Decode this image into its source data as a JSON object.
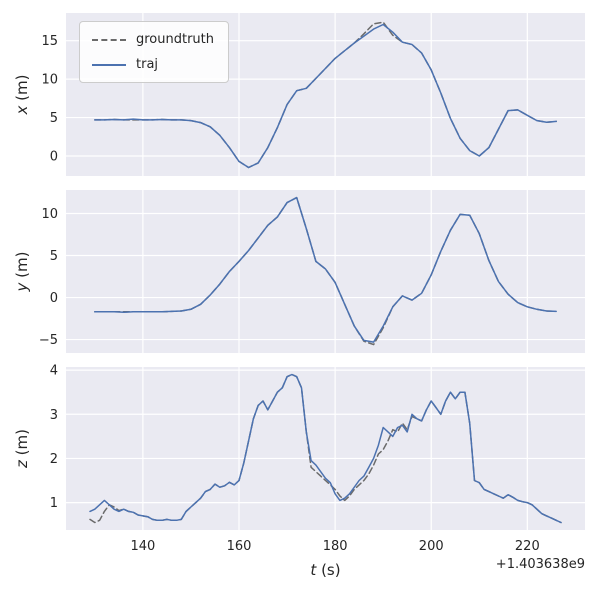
{
  "figure": {
    "xlabel_var": "t",
    "xlabel_unit": "(s)",
    "offset_text": "+1.403638e9",
    "legend": {
      "groundtruth_label": "groundtruth",
      "traj_label": "traj"
    },
    "colors": {
      "axes_bg": "#eaeaf2",
      "grid": "#ffffff",
      "traj": "#4c72b0",
      "groundtruth": "#6b6b6b",
      "text": "#262626"
    }
  },
  "chart_data": [
    {
      "type": "line",
      "ylabel_var": "x",
      "ylabel_unit": "(m)",
      "xlim": [
        124,
        232
      ],
      "ylim": [
        -2.6,
        18.6
      ],
      "xticks": [
        140,
        160,
        180,
        200,
        220
      ],
      "yticks": [
        0,
        5,
        10,
        15
      ],
      "x": [
        130,
        132,
        134,
        136,
        138,
        140,
        142,
        144,
        146,
        148,
        150,
        152,
        154,
        156,
        158,
        160,
        162,
        164,
        166,
        168,
        170,
        172,
        174,
        176,
        178,
        180,
        182,
        184,
        186,
        188,
        190,
        192,
        194,
        196,
        198,
        200,
        202,
        204,
        206,
        208,
        210,
        212,
        214,
        216,
        218,
        220,
        222,
        224,
        226
      ],
      "series": [
        {
          "name": "groundtruth",
          "dash": true,
          "values": [
            4.7,
            4.7,
            4.75,
            4.7,
            4.7,
            4.7,
            4.7,
            4.75,
            4.7,
            4.7,
            4.6,
            4.35,
            3.8,
            2.7,
            1.1,
            -0.7,
            -1.5,
            -0.9,
            1.1,
            3.7,
            6.7,
            8.5,
            8.8,
            10.1,
            11.4,
            12.7,
            13.7,
            14.7,
            15.9,
            17.2,
            17.4,
            15.7,
            14.8,
            14.5,
            13.4,
            11.2,
            8.2,
            4.9,
            2.3,
            0.7,
            0.0,
            1.1,
            3.5,
            5.9,
            6.0,
            5.3,
            4.6,
            4.4,
            4.5
          ]
        },
        {
          "name": "traj",
          "dash": false,
          "values": [
            4.7,
            4.7,
            4.75,
            4.7,
            4.8,
            4.7,
            4.7,
            4.75,
            4.7,
            4.7,
            4.6,
            4.35,
            3.8,
            2.7,
            1.1,
            -0.7,
            -1.5,
            -0.9,
            1.1,
            3.7,
            6.7,
            8.5,
            8.8,
            10.1,
            11.4,
            12.7,
            13.7,
            14.7,
            15.6,
            16.5,
            17.1,
            16.1,
            14.8,
            14.5,
            13.4,
            11.2,
            8.2,
            4.9,
            2.3,
            0.7,
            0.0,
            1.1,
            3.5,
            5.9,
            6.0,
            5.3,
            4.6,
            4.4,
            4.5
          ]
        }
      ]
    },
    {
      "type": "line",
      "ylabel_var": "y",
      "ylabel_unit": "(m)",
      "xlim": [
        124,
        232
      ],
      "ylim": [
        -6.6,
        12.8
      ],
      "xticks": [
        140,
        160,
        180,
        200,
        220
      ],
      "yticks": [
        -5,
        0,
        5,
        10
      ],
      "x": [
        130,
        132,
        134,
        136,
        138,
        140,
        142,
        144,
        146,
        148,
        150,
        152,
        154,
        156,
        158,
        160,
        162,
        164,
        166,
        168,
        170,
        172,
        174,
        176,
        178,
        180,
        182,
        184,
        186,
        188,
        190,
        192,
        194,
        196,
        198,
        200,
        202,
        204,
        206,
        208,
        210,
        212,
        214,
        216,
        218,
        220,
        222,
        224,
        226
      ],
      "series": [
        {
          "name": "groundtruth",
          "dash": true,
          "values": [
            -1.7,
            -1.7,
            -1.7,
            -1.7,
            -1.7,
            -1.7,
            -1.7,
            -1.7,
            -1.65,
            -1.6,
            -1.4,
            -0.8,
            0.3,
            1.6,
            3.1,
            4.3,
            5.6,
            7.1,
            8.6,
            9.6,
            11.3,
            11.9,
            8.2,
            4.3,
            3.4,
            1.8,
            -0.8,
            -3.4,
            -5.2,
            -5.6,
            -3.6,
            -1.1,
            0.2,
            -0.3,
            0.5,
            2.7,
            5.5,
            8.0,
            9.9,
            9.8,
            7.6,
            4.4,
            1.9,
            0.4,
            -0.6,
            -1.1,
            -1.4,
            -1.6,
            -1.65
          ]
        },
        {
          "name": "traj",
          "dash": false,
          "values": [
            -1.7,
            -1.7,
            -1.7,
            -1.75,
            -1.7,
            -1.7,
            -1.7,
            -1.7,
            -1.65,
            -1.6,
            -1.4,
            -0.8,
            0.3,
            1.6,
            3.1,
            4.3,
            5.6,
            7.1,
            8.6,
            9.6,
            11.3,
            11.9,
            8.2,
            4.3,
            3.4,
            1.8,
            -0.8,
            -3.4,
            -5.1,
            -5.3,
            -3.4,
            -1.1,
            0.2,
            -0.3,
            0.5,
            2.7,
            5.5,
            8.0,
            9.9,
            9.8,
            7.6,
            4.4,
            1.9,
            0.4,
            -0.6,
            -1.1,
            -1.4,
            -1.6,
            -1.65
          ]
        }
      ]
    },
    {
      "type": "line",
      "ylabel_var": "z",
      "ylabel_unit": "(m)",
      "xlim": [
        124,
        232
      ],
      "ylim": [
        0.38,
        4.07
      ],
      "xticks": [
        140,
        160,
        180,
        200,
        220
      ],
      "yticks": [
        1,
        2,
        3,
        4
      ],
      "x": [
        129,
        130,
        131,
        132,
        133,
        134,
        135,
        136,
        137,
        138,
        139,
        140,
        141,
        142,
        143,
        144,
        145,
        146,
        147,
        148,
        149,
        150,
        151,
        152,
        153,
        154,
        155,
        156,
        157,
        158,
        159,
        160,
        161,
        162,
        163,
        164,
        165,
        166,
        167,
        168,
        169,
        170,
        171,
        172,
        173,
        174,
        175,
        176,
        177,
        178,
        179,
        180,
        181,
        182,
        183,
        184,
        185,
        186,
        187,
        188,
        189,
        190,
        191,
        192,
        193,
        194,
        195,
        196,
        197,
        198,
        199,
        200,
        201,
        202,
        203,
        204,
        205,
        206,
        207,
        208,
        209,
        210,
        211,
        212,
        213,
        214,
        215,
        216,
        217,
        218,
        219,
        220,
        221,
        222,
        223,
        224,
        225,
        226,
        227
      ],
      "series": [
        {
          "name": "groundtruth",
          "dash": true,
          "values": [
            0.62,
            0.55,
            0.6,
            0.8,
            0.95,
            0.9,
            0.82,
            0.85,
            0.8,
            0.78,
            0.72,
            0.7,
            0.68,
            0.62,
            0.6,
            0.6,
            0.62,
            0.6,
            0.6,
            0.62,
            0.8,
            0.9,
            1.0,
            1.1,
            1.25,
            1.3,
            1.42,
            1.35,
            1.38,
            1.46,
            1.4,
            1.5,
            1.9,
            2.4,
            2.9,
            3.2,
            3.3,
            3.1,
            3.3,
            3.5,
            3.6,
            3.85,
            3.9,
            3.85,
            3.6,
            2.6,
            1.8,
            1.7,
            1.6,
            1.5,
            1.4,
            1.3,
            1.15,
            1.05,
            1.15,
            1.3,
            1.4,
            1.5,
            1.65,
            1.85,
            2.1,
            2.2,
            2.4,
            2.65,
            2.6,
            2.8,
            2.65,
            2.95,
            2.9,
            2.85,
            3.1,
            3.3,
            3.15,
            3.0,
            3.3,
            3.5,
            3.35,
            3.5,
            3.5,
            2.8,
            1.5,
            1.45,
            1.3,
            1.25,
            1.2,
            1.15,
            1.1,
            1.18,
            1.12,
            1.05,
            1.02,
            1.0,
            0.95,
            0.85,
            0.75,
            0.7,
            0.65,
            0.6,
            0.55
          ]
        },
        {
          "name": "traj",
          "dash": false,
          "values": [
            0.8,
            0.85,
            0.95,
            1.05,
            0.95,
            0.85,
            0.8,
            0.85,
            0.8,
            0.78,
            0.72,
            0.7,
            0.68,
            0.62,
            0.6,
            0.6,
            0.62,
            0.6,
            0.6,
            0.62,
            0.8,
            0.9,
            1.0,
            1.1,
            1.25,
            1.3,
            1.42,
            1.35,
            1.38,
            1.46,
            1.4,
            1.5,
            1.9,
            2.4,
            2.9,
            3.2,
            3.3,
            3.1,
            3.3,
            3.5,
            3.6,
            3.85,
            3.9,
            3.85,
            3.6,
            2.6,
            1.95,
            1.85,
            1.7,
            1.55,
            1.45,
            1.2,
            1.05,
            1.1,
            1.2,
            1.35,
            1.5,
            1.6,
            1.8,
            2.0,
            2.3,
            2.7,
            2.6,
            2.5,
            2.7,
            2.75,
            2.6,
            3.0,
            2.9,
            2.85,
            3.1,
            3.3,
            3.15,
            3.0,
            3.3,
            3.5,
            3.35,
            3.5,
            3.5,
            2.8,
            1.5,
            1.45,
            1.3,
            1.25,
            1.2,
            1.15,
            1.1,
            1.18,
            1.12,
            1.05,
            1.02,
            1.0,
            0.95,
            0.85,
            0.75,
            0.7,
            0.65,
            0.6,
            0.55
          ]
        }
      ]
    }
  ]
}
